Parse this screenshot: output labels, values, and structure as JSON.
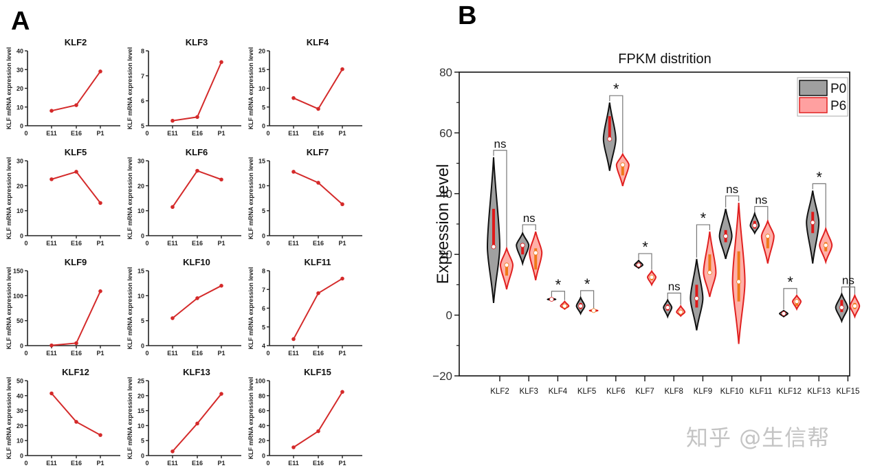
{
  "panels": {
    "a_label": "A",
    "b_label": "B"
  },
  "watermark": "知乎 @生信帮",
  "chart_data": [
    {
      "type": "line",
      "panel": "A",
      "layout": "grid 5x3 small multiples",
      "ylabel": "KLF mRNA expression level",
      "x_origin_label": "0",
      "categories": [
        "E11",
        "E16",
        "P1"
      ],
      "line_color": "#d42a2a",
      "subplots": [
        {
          "title": "KLF2",
          "ylim": [
            0,
            40
          ],
          "yticks": [
            0,
            10,
            20,
            30,
            40
          ],
          "values": [
            8,
            11,
            29
          ]
        },
        {
          "title": "KLF3",
          "ylim": [
            5,
            8
          ],
          "yticks": [
            5,
            6,
            7,
            8
          ],
          "values": [
            5.2,
            5.35,
            7.55
          ]
        },
        {
          "title": "KLF4",
          "ylim": [
            0,
            20
          ],
          "yticks": [
            0,
            5,
            10,
            15,
            20
          ],
          "values": [
            7.4,
            4.5,
            15.1
          ]
        },
        {
          "title": "KLF5",
          "ylim": [
            0,
            30
          ],
          "yticks": [
            0,
            10,
            20,
            30
          ],
          "values": [
            22.6,
            25.6,
            13.1
          ]
        },
        {
          "title": "KLF6",
          "ylim": [
            0,
            30
          ],
          "yticks": [
            0,
            10,
            20,
            30
          ],
          "values": [
            11.5,
            26,
            22.5
          ]
        },
        {
          "title": "KLF7",
          "ylim": [
            0,
            15
          ],
          "yticks": [
            0,
            5,
            10,
            15
          ],
          "values": [
            12.8,
            10.6,
            6.3
          ]
        },
        {
          "title": "KLF9",
          "ylim": [
            0,
            150
          ],
          "yticks": [
            0,
            50,
            100,
            150
          ],
          "values": [
            0.5,
            5,
            109
          ]
        },
        {
          "title": "KLF10",
          "ylim": [
            0,
            15
          ],
          "yticks": [
            0,
            5,
            10,
            15
          ],
          "values": [
            5.5,
            9.5,
            12
          ]
        },
        {
          "title": "KLF11",
          "ylim": [
            4,
            8
          ],
          "yticks": [
            4,
            5,
            6,
            7,
            8
          ],
          "values": [
            4.35,
            6.8,
            7.58
          ]
        },
        {
          "title": "KLF12",
          "ylim": [
            0,
            50
          ],
          "yticks": [
            0,
            10,
            20,
            30,
            40,
            50
          ],
          "values": [
            41.5,
            22.5,
            13.7
          ]
        },
        {
          "title": "KLF13",
          "ylim": [
            0,
            25
          ],
          "yticks": [
            0,
            5,
            10,
            15,
            20,
            25
          ],
          "values": [
            1.4,
            10.7,
            20.6
          ]
        },
        {
          "title": "KLF15",
          "ylim": [
            0,
            100
          ],
          "yticks": [
            0,
            20,
            40,
            60,
            80,
            100
          ],
          "values": [
            11,
            32.5,
            85
          ]
        }
      ]
    },
    {
      "type": "violin",
      "panel": "B",
      "title": "FPKM distrition",
      "xlabel": "",
      "ylabel": "Expression level",
      "ylim": [
        -20,
        80
      ],
      "yticks": [
        -20,
        0,
        20,
        40,
        60,
        80
      ],
      "grid": false,
      "legend": {
        "position": "top-right",
        "entries": [
          {
            "name": "P0",
            "fill": "#a0a0a0",
            "stroke": "#111111"
          },
          {
            "name": "P6",
            "fill": "#ffa0a0",
            "stroke": "#e02020"
          }
        ]
      },
      "categories": [
        "KLF2",
        "KLF3",
        "KLF4",
        "KLF5",
        "KLF6",
        "KLF7",
        "KLF8",
        "KLF9",
        "KLF10",
        "KLF11",
        "KLF12",
        "KLF13",
        "KLF15"
      ],
      "significance": [
        "ns",
        "ns",
        "*",
        "*",
        "*",
        "*",
        "ns",
        "*",
        "ns",
        "ns",
        "*",
        "*",
        "ns"
      ],
      "series": [
        {
          "name": "P0",
          "stats": [
            {
              "min": 4,
              "q1": 22,
              "median": 22.5,
              "q3": 35,
              "max": 52
            },
            {
              "min": 17,
              "q1": 20,
              "median": 23,
              "q3": 23.5,
              "max": 27
            },
            {
              "min": 4.9,
              "q1": 5.1,
              "median": 5.2,
              "q3": 5.3,
              "max": 5.6
            },
            {
              "min": 0.5,
              "q1": 2,
              "median": 3,
              "q3": 4,
              "max": 5.8
            },
            {
              "min": 47.5,
              "q1": 58,
              "median": 58,
              "q3": 65.5,
              "max": 70
            },
            {
              "min": 15.5,
              "q1": 16,
              "median": 16.5,
              "q3": 17,
              "max": 18
            },
            {
              "min": -0.5,
              "q1": 1.5,
              "median": 2.5,
              "q3": 3.5,
              "max": 5
            },
            {
              "min": -5,
              "q1": 2.5,
              "median": 5.5,
              "q3": 10,
              "max": 18.5
            },
            {
              "min": 18.5,
              "q1": 24,
              "median": 26,
              "q3": 28,
              "max": 35
            },
            {
              "min": 27,
              "q1": 28.5,
              "median": 29.5,
              "q3": 31,
              "max": 33.5
            },
            {
              "min": -0.5,
              "q1": 0.2,
              "median": 0.5,
              "q3": 0.8,
              "max": 1.5
            },
            {
              "min": 17,
              "q1": 27,
              "median": 30.5,
              "q3": 34,
              "max": 41
            },
            {
              "min": -2,
              "q1": 1,
              "median": 2.5,
              "q3": 5,
              "max": 7
            }
          ]
        },
        {
          "name": "P6",
          "stats": [
            {
              "min": 8.5,
              "q1": 13,
              "median": 16.5,
              "q3": 17,
              "max": 22
            },
            {
              "min": 11.5,
              "q1": 15,
              "median": 20.5,
              "q3": 22,
              "max": 27.5
            },
            {
              "min": 2,
              "q1": 2.5,
              "median": 3,
              "q3": 3.5,
              "max": 4.5
            },
            {
              "min": 1.2,
              "q1": 1.4,
              "median": 1.5,
              "q3": 1.6,
              "max": 1.8
            },
            {
              "min": 42.5,
              "q1": 46,
              "median": 49.5,
              "q3": 50,
              "max": 53
            },
            {
              "min": 10,
              "q1": 11.5,
              "median": 12.5,
              "q3": 13,
              "max": 14.5
            },
            {
              "min": -0.3,
              "q1": 0.5,
              "median": 1,
              "q3": 1.5,
              "max": 3
            },
            {
              "min": 6,
              "q1": 14,
              "median": 14,
              "q3": 20,
              "max": 27.5
            },
            {
              "min": -9.5,
              "q1": 4.5,
              "median": 11,
              "q3": 21,
              "max": 37
            },
            {
              "min": 17,
              "q1": 22,
              "median": 26,
              "q3": 26.5,
              "max": 31
            },
            {
              "min": 2,
              "q1": 3,
              "median": 4.5,
              "q3": 5,
              "max": 6.5
            },
            {
              "min": 17.5,
              "q1": 21,
              "median": 23,
              "q3": 24,
              "max": 28.5
            },
            {
              "min": -0.5,
              "q1": 2,
              "median": 3,
              "q3": 4,
              "max": 6.5
            }
          ]
        }
      ]
    }
  ]
}
